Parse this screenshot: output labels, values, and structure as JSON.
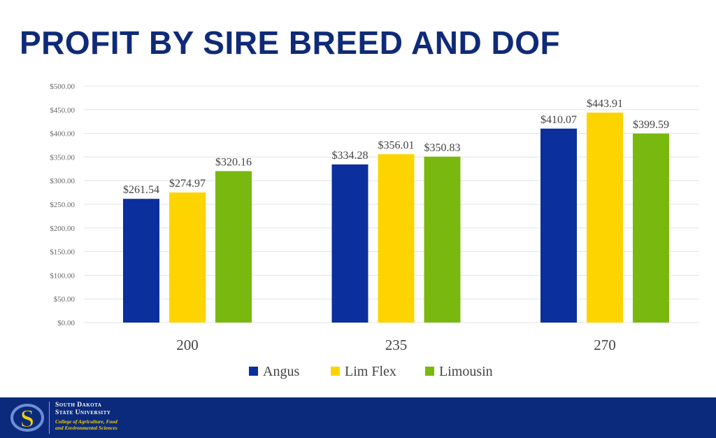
{
  "chart_data": {
    "type": "bar",
    "title": "PROFIT BY SIRE BREED AND DOF",
    "xlabel": "",
    "ylabel": "",
    "categories": [
      "200",
      "235",
      "270"
    ],
    "series": [
      {
        "name": "Angus",
        "color": "#0b2f9c",
        "values": [
          261.54,
          334.28,
          410.07
        ],
        "labels": [
          "$261.54",
          "$334.28",
          "$410.07"
        ]
      },
      {
        "name": "Lim Flex",
        "color": "#fdd400",
        "values": [
          274.97,
          356.01,
          443.91
        ],
        "labels": [
          "$274.97",
          "$356.01",
          "$443.91"
        ]
      },
      {
        "name": "Limousin",
        "color": "#79b90f",
        "values": [
          320.16,
          350.83,
          399.59
        ],
        "labels": [
          "$320.16",
          "$350.83",
          "$399.59"
        ]
      }
    ],
    "ylim": [
      0,
      500
    ],
    "yticks": [
      0,
      50,
      100,
      150,
      200,
      250,
      300,
      350,
      400,
      450,
      500
    ],
    "ytick_labels": [
      "$0.00",
      "$50.00",
      "$100.00",
      "$150.00",
      "$200.00",
      "$250.00",
      "$300.00",
      "$350.00",
      "$400.00",
      "$450.00",
      "$500.00"
    ],
    "grid": true,
    "legend": "bottom"
  },
  "footer": {
    "university_line1": "South Dakota",
    "university_line2": "State University",
    "college_line1": "College of Agriculture, Food",
    "college_line2": "and Environmental Sciences",
    "logo_text": "SD",
    "background": "#0c2a7c"
  }
}
